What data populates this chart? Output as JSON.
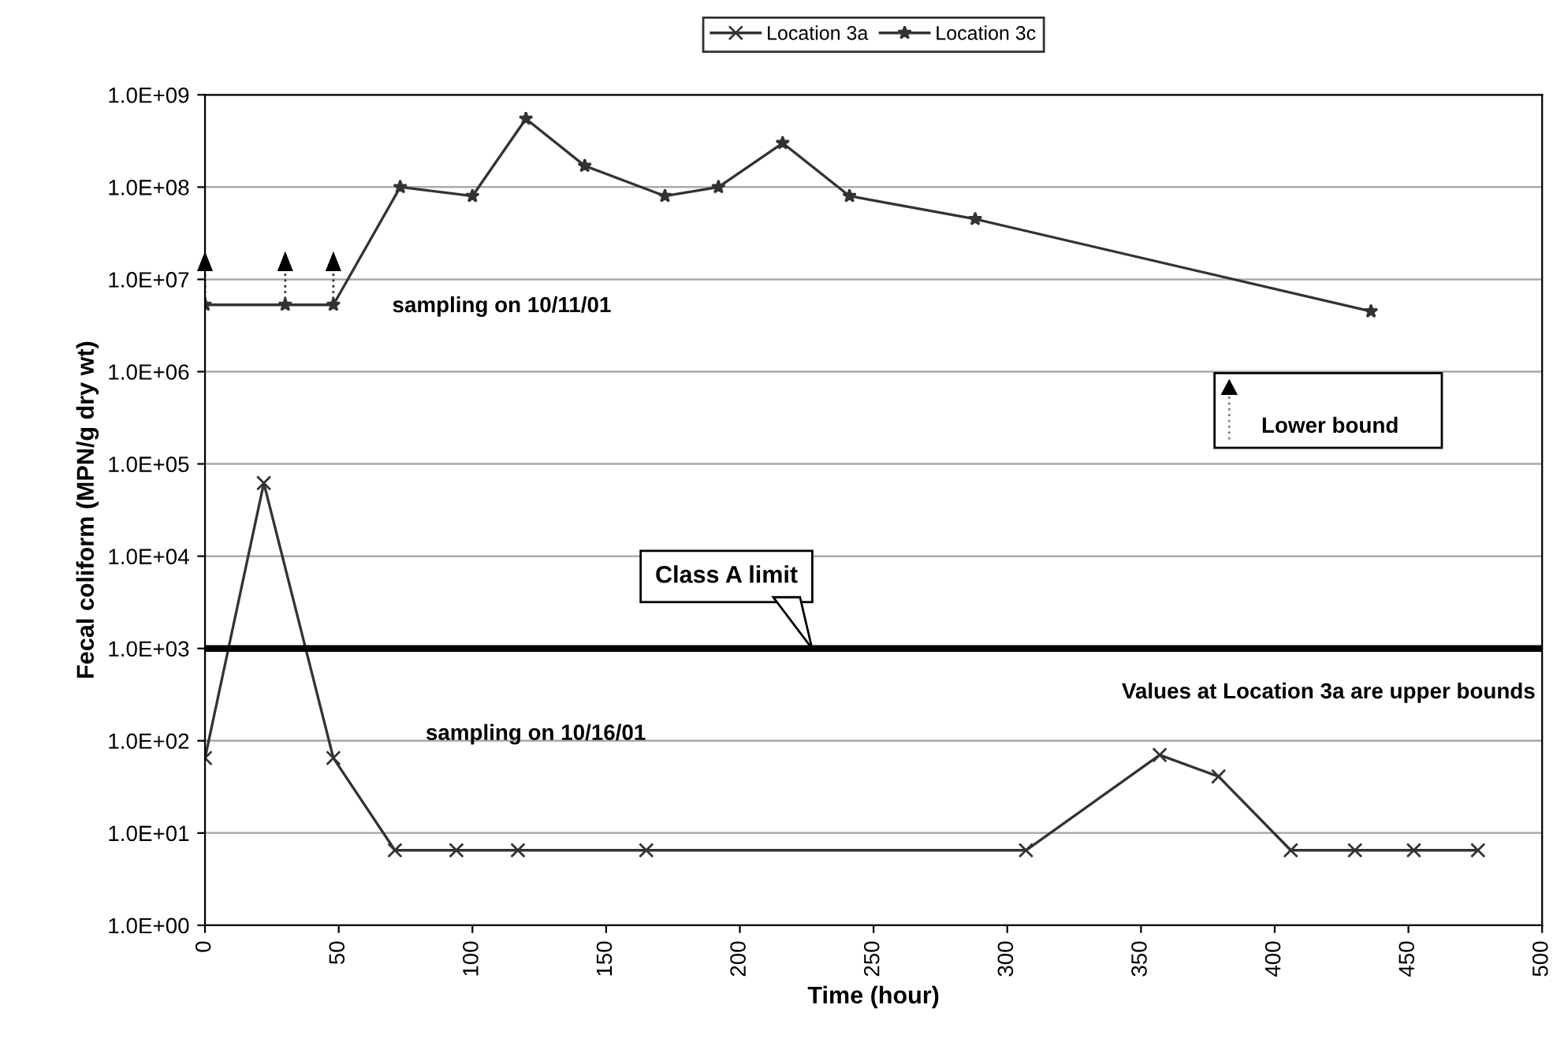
{
  "chart_data": {
    "type": "line",
    "xlabel": "Time (hour)",
    "ylabel": "Fecal coliform (MPN/g dry wt)",
    "log": "y",
    "grid": "y",
    "legend": "top",
    "xlim": [
      0,
      500
    ],
    "xticks": [
      0,
      50,
      100,
      150,
      200,
      250,
      300,
      350,
      400,
      450,
      500
    ],
    "ylim": [
      1,
      1000000000
    ],
    "yticks": [
      {
        "value": 1,
        "label": "1.0E+00"
      },
      {
        "value": 10,
        "label": "1.0E+01"
      },
      {
        "value": 100,
        "label": "1.0E+02"
      },
      {
        "value": 1000,
        "label": "1.0E+03"
      },
      {
        "value": 10000,
        "label": "1.0E+04"
      },
      {
        "value": 100000,
        "label": "1.0E+05"
      },
      {
        "value": 1000000,
        "label": "1.0E+06"
      },
      {
        "value": 10000000,
        "label": "1.0E+07"
      },
      {
        "value": 100000000,
        "label": "1.0E+08"
      },
      {
        "value": 1000000000,
        "label": "1.0E+09"
      }
    ],
    "series": [
      {
        "name": "Location 3a",
        "color": "#333333",
        "marker": "cross",
        "x": [
          0,
          22,
          48,
          71,
          94,
          117,
          165,
          307,
          357,
          379,
          406,
          430,
          452,
          476
        ],
        "values": [
          65,
          62000,
          65,
          6.5,
          6.5,
          6.5,
          6.5,
          6.5,
          70,
          41,
          6.5,
          6.5,
          6.5,
          6.5
        ]
      },
      {
        "name": "Location 3c",
        "color": "#333333",
        "marker": "star",
        "x": [
          0,
          30,
          48,
          73,
          100,
          120,
          142,
          172,
          192,
          216,
          241,
          288,
          436
        ],
        "values": [
          5300000,
          5300000,
          5300000,
          100000000,
          80000000,
          550000000,
          170000000,
          80000000,
          100000000,
          300000000,
          80000000,
          45000000,
          4500000
        ],
        "errors": [
          [
            5300000,
            18000000
          ],
          [
            5300000,
            18000000
          ],
          [
            5300000,
            18000000
          ],
          null,
          null,
          null,
          null,
          null,
          null,
          null,
          null,
          null,
          null
        ]
      }
    ],
    "ref_lines": [
      {
        "axis": "y",
        "value": 1000,
        "label": "Class A limit",
        "color": "#000000"
      }
    ],
    "annotations": [
      "sampling on 10/11/01",
      "sampling on 10/16/01",
      "Values at Location 3a are upper bounds",
      "Lower bound"
    ]
  }
}
